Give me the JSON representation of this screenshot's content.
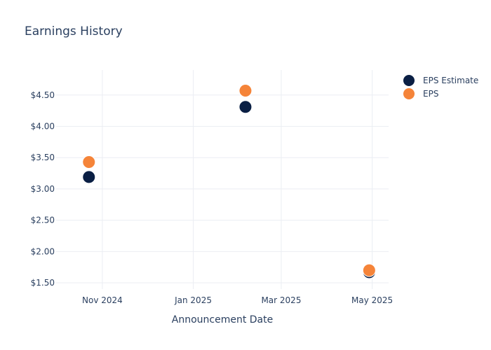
{
  "chart_data": {
    "type": "scatter",
    "title": "Earnings History",
    "xlabel": "Announcement Date",
    "ylabel": "",
    "x_axis_type": "date",
    "xlim": [
      "2024-10-01",
      "2025-05-12"
    ],
    "ylim": [
      1.4,
      4.9
    ],
    "x_ticks": [
      {
        "date": "2024-11-01",
        "label": "Nov 2024"
      },
      {
        "date": "2025-01-01",
        "label": "Jan 2025"
      },
      {
        "date": "2025-03-01",
        "label": "Mar 2025"
      },
      {
        "date": "2025-05-01",
        "label": "May 2025"
      }
    ],
    "y_ticks": [
      {
        "value": 1.5,
        "label": "$1.50"
      },
      {
        "value": 2.0,
        "label": "$2.00"
      },
      {
        "value": 2.5,
        "label": "$2.50"
      },
      {
        "value": 3.0,
        "label": "$3.00"
      },
      {
        "value": 3.5,
        "label": "$3.50"
      },
      {
        "value": 4.0,
        "label": "$4.00"
      },
      {
        "value": 4.5,
        "label": "$4.50"
      }
    ],
    "grid": true,
    "legend_position": "top-right",
    "series": [
      {
        "name": "EPS Estimate",
        "color": "#0a1f44",
        "points": [
          {
            "x": "2024-10-23",
            "y": 3.19
          },
          {
            "x": "2025-02-05",
            "y": 4.31
          },
          {
            "x": "2025-04-29",
            "y": 1.67
          }
        ]
      },
      {
        "name": "EPS",
        "color": "#f58439",
        "points": [
          {
            "x": "2024-10-23",
            "y": 3.43
          },
          {
            "x": "2025-02-05",
            "y": 4.57
          },
          {
            "x": "2025-04-29",
            "y": 1.7
          }
        ]
      }
    ]
  }
}
